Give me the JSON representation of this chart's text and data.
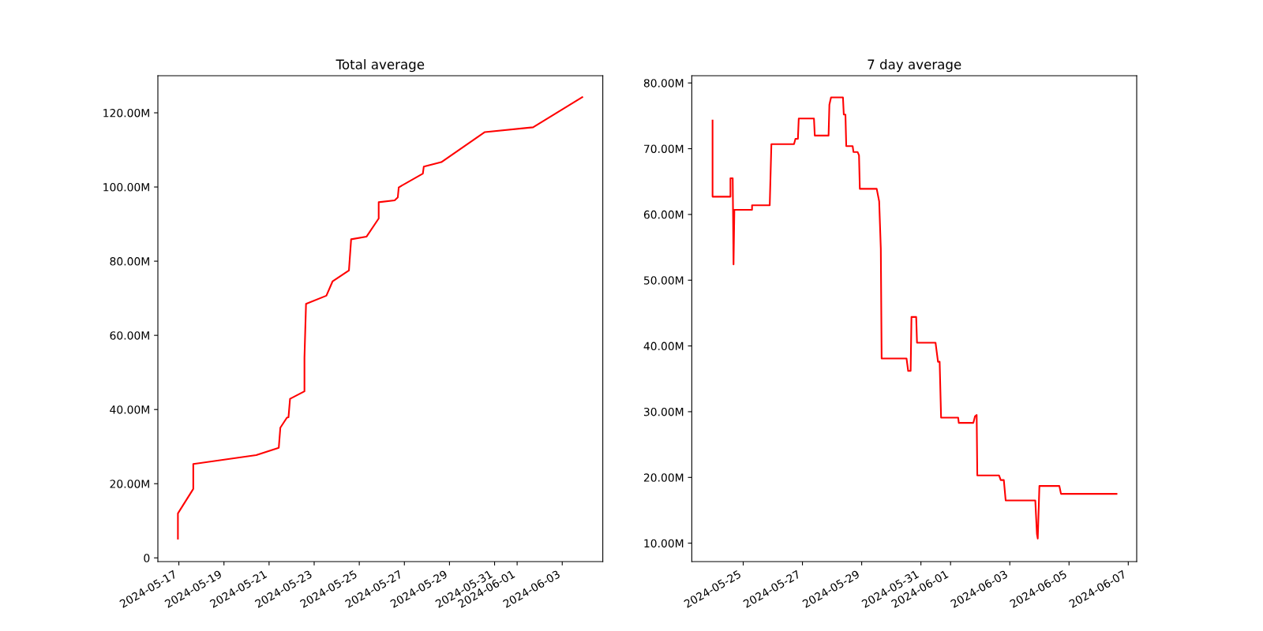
{
  "chart_data": [
    {
      "type": "line",
      "title": "Total average",
      "x": [
        "2024-05-16T23:00",
        "2024-05-16T23:00",
        "2024-05-17T15:20",
        "2024-05-17T15:20",
        "2024-05-20T10:20",
        "2024-05-21T10:20",
        "2024-05-21T12:00",
        "2024-05-21T19:00",
        "2024-05-21T20:40",
        "2024-05-21T22:20",
        "2024-05-22T13:40",
        "2024-05-22T13:40",
        "2024-05-22T15:20",
        "2024-05-23T13:00",
        "2024-05-23T19:40",
        "2024-05-24T13:00",
        "2024-05-24T15:20",
        "2024-05-25T07:40",
        "2024-05-25T20:40",
        "2024-05-25T20:40",
        "2024-05-26T13:40",
        "2024-05-26T17:00",
        "2024-05-26T18:00",
        "2024-05-27T19:40",
        "2024-05-27T20:40",
        "2024-05-28T15:20",
        "2024-05-30T13:40",
        "2024-06-01T17:00",
        "2024-06-03T21:20"
      ],
      "series": [
        {
          "color": "#ff0000",
          "values": [
            5.2,
            12.0,
            18.6,
            25.3,
            27.7,
            29.7,
            35.1,
            37.8,
            37.9,
            42.9,
            44.9,
            54,
            68.5,
            70.7,
            74.6,
            77.5,
            85.9,
            86.6,
            91.5,
            95.9,
            96.4,
            97.2,
            99.9,
            103.6,
            105.5,
            106.7,
            114.8,
            116.1,
            124.2
          ]
        }
      ],
      "xlim": [
        "2024-05-16T01:40",
        "2024-06-04T19:10"
      ],
      "xticks": [
        {
          "value": "2024-05-17",
          "label": "2024-05-17"
        },
        {
          "value": "2024-05-19",
          "label": "2024-05-19"
        },
        {
          "value": "2024-05-21",
          "label": "2024-05-21"
        },
        {
          "value": "2024-05-23",
          "label": "2024-05-23"
        },
        {
          "value": "2024-05-25",
          "label": "2024-05-25"
        },
        {
          "value": "2024-05-27",
          "label": "2024-05-27"
        },
        {
          "value": "2024-05-29",
          "label": "2024-05-29"
        },
        {
          "value": "2024-05-31",
          "label": "2024-05-31"
        },
        {
          "value": "2024-06-01",
          "label": "2024-06-01"
        },
        {
          "value": "2024-06-03",
          "label": "2024-06-03"
        }
      ],
      "ylim": [
        -1,
        130
      ],
      "yticks": [
        0,
        {
          "value": 20,
          "label": "20.00M"
        },
        {
          "value": 40,
          "label": "40.00M"
        },
        {
          "value": 60,
          "label": "60.00M"
        },
        {
          "value": 80,
          "label": "80.00M"
        },
        {
          "value": 100,
          "label": "100.00M"
        },
        {
          "value": 120,
          "label": "120.00M"
        }
      ],
      "grid": false,
      "legend": false
    },
    {
      "type": "line",
      "title": "7 day average",
      "x": [
        "2024-05-23T23:10",
        "2024-05-23T23:10",
        "2024-05-24T13:40",
        "2024-05-24T13:40",
        "2024-05-24T15:30",
        "2024-05-24T16:10",
        "2024-05-24T16:50",
        "2024-05-25T07:10",
        "2024-05-25T07:10",
        "2024-05-25T21:30",
        "2024-05-25T22:50",
        "2024-05-26T17:10",
        "2024-05-26T18:20",
        "2024-05-26T20:20",
        "2024-05-26T21:00",
        "2024-05-27T09:20",
        "2024-05-27T10:00",
        "2024-05-27T21:10",
        "2024-05-27T21:50",
        "2024-05-27T23:10",
        "2024-05-28T08:50",
        "2024-05-28T09:30",
        "2024-05-28T10:50",
        "2024-05-28T11:30",
        "2024-05-28T16:40",
        "2024-05-28T17:20",
        "2024-05-28T20:40",
        "2024-05-28T21:50",
        "2024-05-28T22:30",
        "2024-05-29T12:10",
        "2024-05-29T14:10",
        "2024-05-29T15:30",
        "2024-05-29T16:10",
        "2024-05-30T12:20",
        "2024-05-30T13:40",
        "2024-05-30T15:40",
        "2024-05-30T16:20",
        "2024-05-30T20:10",
        "2024-05-30T20:50",
        "2024-05-31T11:50",
        "2024-05-31T13:50",
        "2024-05-31T15:10",
        "2024-05-31T16:20",
        "2024-06-01T06:10",
        "2024-06-01T06:40",
        "2024-06-01T18:30",
        "2024-06-01T19:50",
        "2024-06-01T21:10",
        "2024-06-01T21:40",
        "2024-06-02T15:20",
        "2024-06-02T16:40",
        "2024-06-02T19:10",
        "2024-06-02T20:40",
        "2024-06-03T20:40",
        "2024-06-03T22:00",
        "2024-06-03T22:40",
        "2024-06-04T00:00",
        "2024-06-04T16:10",
        "2024-06-04T17:30",
        "2024-06-06T14:30"
      ],
      "series": [
        {
          "color": "#ff0000",
          "values": [
            74.3,
            62.7,
            62.7,
            65.5,
            65.5,
            52.4,
            60.7,
            60.7,
            61.4,
            61.4,
            70.7,
            70.7,
            71.5,
            71.5,
            74.6,
            74.6,
            72.0,
            72.0,
            76.7,
            77.8,
            77.8,
            75.2,
            75.2,
            70.4,
            70.4,
            69.5,
            69.5,
            69.0,
            63.9,
            63.9,
            62.0,
            54.8,
            38.1,
            38.1,
            36.2,
            36.2,
            44.4,
            44.4,
            40.5,
            40.5,
            37.6,
            37.6,
            29.1,
            29.1,
            28.3,
            28.3,
            29.3,
            29.5,
            20.3,
            20.3,
            19.6,
            19.6,
            16.5,
            16.5,
            11.4,
            10.7,
            18.7,
            18.7,
            17.5,
            17.5
          ]
        }
      ],
      "xlim": [
        "2024-05-23T06:20",
        "2024-06-07T06:50"
      ],
      "xticks": [
        {
          "value": "2024-05-25",
          "label": "2024-05-25"
        },
        {
          "value": "2024-05-27",
          "label": "2024-05-27"
        },
        {
          "value": "2024-05-29",
          "label": "2024-05-29"
        },
        {
          "value": "2024-05-31",
          "label": "2024-05-31"
        },
        {
          "value": "2024-06-01",
          "label": "2024-06-01"
        },
        {
          "value": "2024-06-03",
          "label": "2024-06-03"
        },
        {
          "value": "2024-06-05",
          "label": "2024-06-05"
        },
        {
          "value": "2024-06-07",
          "label": "2024-06-07"
        }
      ],
      "ylim": [
        7.2,
        81.1
      ],
      "yticks": [
        {
          "value": 10,
          "label": "10.00M"
        },
        {
          "value": 20,
          "label": "20.00M"
        },
        {
          "value": 30,
          "label": "30.00M"
        },
        {
          "value": 40,
          "label": "40.00M"
        },
        {
          "value": 50,
          "label": "50.00M"
        },
        {
          "value": 60,
          "label": "60.00M"
        },
        {
          "value": 70,
          "label": "70.00M"
        },
        {
          "value": 80,
          "label": "80.00M"
        }
      ],
      "grid": false,
      "legend": false
    }
  ]
}
